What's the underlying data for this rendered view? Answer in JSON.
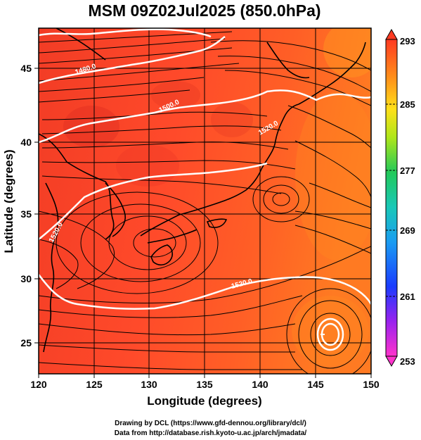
{
  "title": "MSM 09Z02Jul2025 (850.0hPa)",
  "axes": {
    "xlabel": "Longitude (degrees)",
    "ylabel": "Latitude  (degrees)",
    "xticks": [
      "120",
      "125",
      "130",
      "135",
      "140",
      "145",
      "150"
    ],
    "yticks": [
      "25",
      "30",
      "35",
      "40",
      "45"
    ],
    "xlim": [
      120,
      150
    ],
    "ylim": [
      22.4,
      47.6
    ]
  },
  "colorbar": {
    "ticks": [
      "293",
      "285",
      "277",
      "269",
      "261",
      "253"
    ],
    "range": [
      253,
      293
    ],
    "colors": [
      "#ff33cc",
      "#9922ee",
      "#1a3cff",
      "#1a9cf2",
      "#19c8b8",
      "#22c95a",
      "#aee61a",
      "#ffe01a",
      "#ff8f1a",
      "#ff3a22"
    ]
  },
  "contours": {
    "color": "#ffffff",
    "labels": [
      "1480.0",
      "1500.0",
      "1520.0",
      "1520.0",
      "1520.0"
    ]
  },
  "field_colors": {
    "base": "#ff4a2a",
    "warm_east": "#ff7a22",
    "dark_west": "#e83222"
  },
  "credits": {
    "line1": "Drawing by DCL (https://www.gfd-dennou.org/library/dcl/)",
    "line2": "Data from http://database.rish.kyoto-u.ac.jp/arch/jmadata/"
  }
}
